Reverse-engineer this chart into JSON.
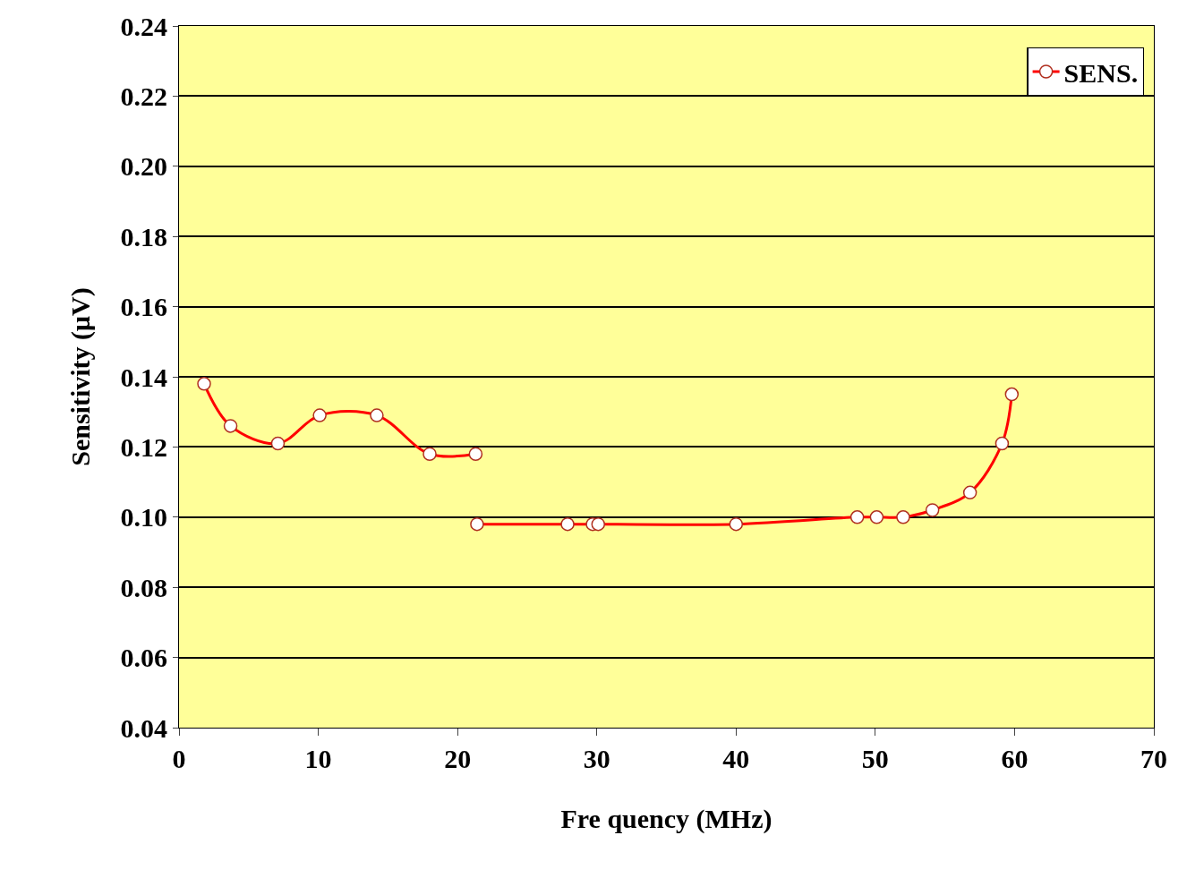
{
  "chart_data": {
    "type": "line",
    "xlabel": "Fre quency (MHz)",
    "ylabel": "Sensitivity (μV)",
    "x": [
      1.8,
      3.7,
      7.1,
      10.1,
      14.2,
      18.0,
      21.3,
      21.35,
      21.4,
      27.9,
      29.7,
      30.1,
      40.0,
      48.7,
      50.1,
      52.0,
      54.1,
      56.8,
      59.1,
      59.8
    ],
    "series": [
      {
        "name": "SENS.",
        "color": "#ff0000",
        "values": [
          0.138,
          0.126,
          0.121,
          0.129,
          0.129,
          0.118,
          0.118,
          null,
          0.098,
          0.098,
          0.098,
          0.098,
          0.098,
          0.1,
          0.1,
          0.1,
          0.102,
          0.107,
          0.121,
          0.135
        ]
      }
    ],
    "xlim": [
      0,
      70
    ],
    "xticks": [
      0,
      10,
      20,
      30,
      40,
      50,
      60,
      70
    ],
    "ylim": [
      0.04,
      0.24
    ],
    "yticks": [
      {
        "value": 0.04,
        "label": "0.04"
      },
      {
        "value": 0.06,
        "label": "0.06"
      },
      {
        "value": 0.08,
        "label": "0.08"
      },
      {
        "value": 0.1,
        "label": "0.10"
      },
      {
        "value": 0.12,
        "label": "0.12"
      },
      {
        "value": 0.14,
        "label": "0.14"
      },
      {
        "value": 0.16,
        "label": "0.16"
      },
      {
        "value": 0.18,
        "label": "0.18"
      },
      {
        "value": 0.2,
        "label": "0.20"
      },
      {
        "value": 0.22,
        "label": "0.22"
      },
      {
        "value": 0.24,
        "label": "0.24"
      }
    ],
    "grid": "y",
    "legend": "top right",
    "marker": "circle",
    "line_style": "solid"
  }
}
